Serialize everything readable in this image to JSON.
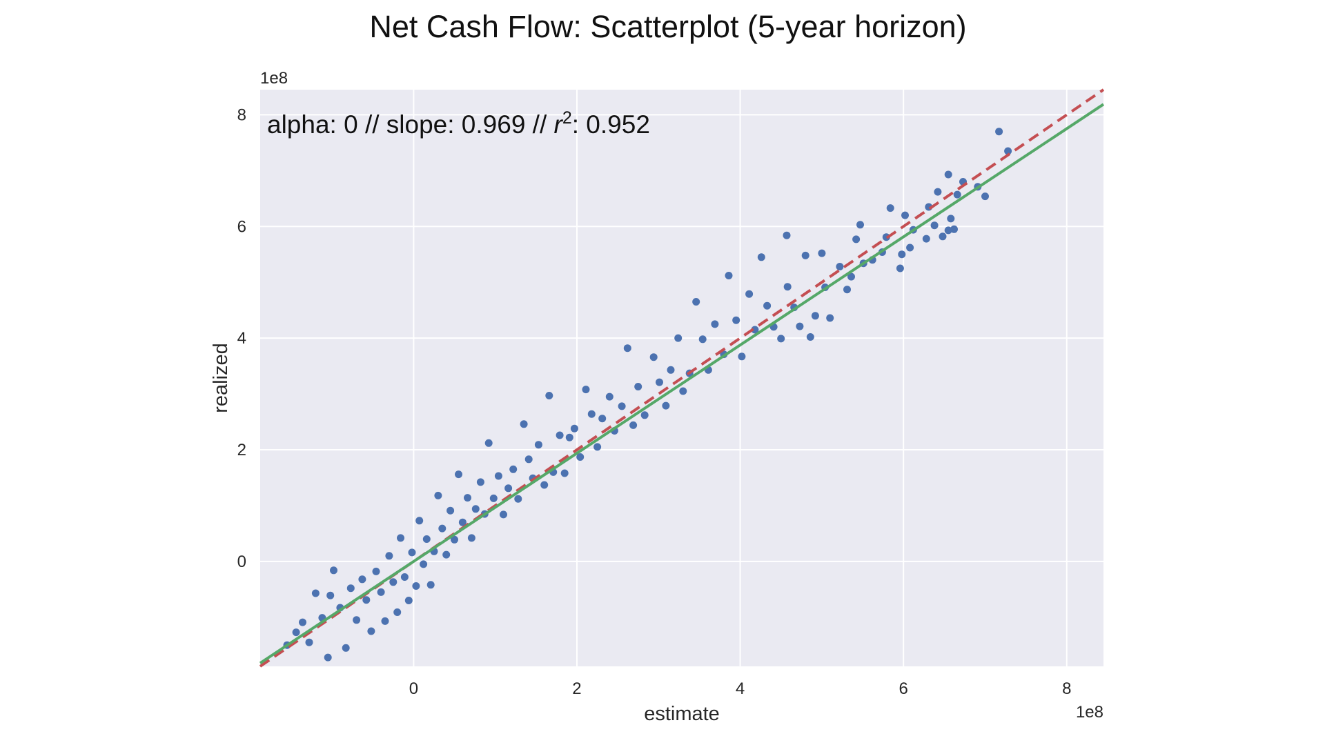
{
  "chart_data": {
    "type": "scatter",
    "title": "Net Cash Flow: Scatterplot (5-year horizon)",
    "xlabel": "estimate",
    "ylabel": "realized",
    "x_offset_label": "1e8",
    "y_offset_label": "1e8",
    "xlim": [
      -1.88,
      8.45
    ],
    "ylim": [
      -1.88,
      8.45
    ],
    "x_ticks": [
      0,
      2,
      4,
      6,
      8
    ],
    "y_ticks": [
      0,
      2,
      4,
      6,
      8
    ],
    "x_tick_labels": [
      "0",
      "2",
      "4",
      "6",
      "8"
    ],
    "y_tick_labels": [
      "0",
      "2",
      "4",
      "6",
      "8"
    ],
    "grid": true,
    "annotation": {
      "prefix": "alpha: 0  //  slope: 0.969  //  ",
      "r_symbol": "r",
      "r_exponent": "2",
      "suffix": ": 0.952"
    },
    "lines": [
      {
        "style": "dashed",
        "color": "#c44e52",
        "slope": 1.0,
        "intercept": 0
      },
      {
        "style": "solid",
        "color": "#55a868",
        "slope": 0.969,
        "intercept": 0
      }
    ],
    "series": [
      {
        "color": "#4c72b0",
        "points": [
          [
            7.17,
            7.7
          ],
          [
            7.28,
            7.35
          ],
          [
            7.0,
            6.54
          ],
          [
            6.91,
            6.71
          ],
          [
            6.55,
            6.93
          ],
          [
            6.73,
            6.8
          ],
          [
            6.66,
            6.57
          ],
          [
            6.42,
            6.62
          ],
          [
            6.31,
            6.35
          ],
          [
            6.38,
            6.02
          ],
          [
            6.48,
            5.82
          ],
          [
            6.55,
            5.93
          ],
          [
            6.58,
            6.14
          ],
          [
            6.62,
            5.95
          ],
          [
            6.28,
            5.78
          ],
          [
            6.12,
            5.94
          ],
          [
            6.08,
            5.62
          ],
          [
            6.02,
            6.2
          ],
          [
            5.98,
            5.5
          ],
          [
            5.96,
            5.25
          ],
          [
            5.84,
            6.33
          ],
          [
            5.79,
            5.81
          ],
          [
            5.74,
            5.54
          ],
          [
            5.62,
            5.4
          ],
          [
            5.51,
            5.34
          ],
          [
            5.47,
            6.03
          ],
          [
            5.42,
            5.77
          ],
          [
            5.36,
            5.1
          ],
          [
            5.31,
            4.87
          ],
          [
            5.22,
            5.28
          ],
          [
            5.1,
            4.36
          ],
          [
            5.04,
            4.91
          ],
          [
            5.0,
            5.52
          ],
          [
            4.92,
            4.4
          ],
          [
            4.86,
            4.02
          ],
          [
            4.8,
            5.48
          ],
          [
            4.73,
            4.21
          ],
          [
            4.66,
            4.55
          ],
          [
            4.58,
            4.92
          ],
          [
            4.57,
            5.84
          ],
          [
            4.5,
            3.99
          ],
          [
            4.41,
            4.2
          ],
          [
            4.33,
            4.58
          ],
          [
            4.26,
            5.45
          ],
          [
            4.18,
            4.15
          ],
          [
            4.11,
            4.79
          ],
          [
            4.02,
            3.67
          ],
          [
            3.95,
            4.32
          ],
          [
            3.86,
            5.12
          ],
          [
            3.8,
            3.71
          ],
          [
            3.69,
            4.25
          ],
          [
            3.61,
            3.43
          ],
          [
            3.54,
            3.98
          ],
          [
            3.46,
            4.65
          ],
          [
            3.38,
            3.37
          ],
          [
            3.3,
            3.05
          ],
          [
            3.24,
            4.0
          ],
          [
            3.15,
            3.43
          ],
          [
            3.09,
            2.79
          ],
          [
            3.01,
            3.21
          ],
          [
            2.94,
            3.66
          ],
          [
            2.83,
            2.62
          ],
          [
            2.75,
            3.13
          ],
          [
            2.69,
            2.44
          ],
          [
            2.62,
            3.82
          ],
          [
            2.55,
            2.78
          ],
          [
            2.46,
            2.34
          ],
          [
            2.4,
            2.95
          ],
          [
            2.31,
            2.56
          ],
          [
            2.25,
            2.05
          ],
          [
            2.18,
            2.64
          ],
          [
            2.11,
            3.08
          ],
          [
            2.04,
            1.87
          ],
          [
            1.97,
            2.38
          ],
          [
            1.91,
            2.22
          ],
          [
            1.85,
            1.58
          ],
          [
            1.79,
            2.26
          ],
          [
            1.71,
            1.6
          ],
          [
            1.66,
            2.97
          ],
          [
            1.6,
            1.37
          ],
          [
            1.53,
            2.09
          ],
          [
            1.46,
            1.49
          ],
          [
            1.41,
            1.83
          ],
          [
            1.35,
            2.46
          ],
          [
            1.28,
            1.12
          ],
          [
            1.22,
            1.65
          ],
          [
            1.16,
            1.31
          ],
          [
            1.1,
            0.84
          ],
          [
            1.04,
            1.53
          ],
          [
            0.98,
            1.13
          ],
          [
            0.92,
            2.12
          ],
          [
            0.87,
            0.85
          ],
          [
            0.82,
            1.42
          ],
          [
            0.76,
            0.94
          ],
          [
            0.71,
            0.42
          ],
          [
            0.66,
            1.14
          ],
          [
            0.6,
            0.7
          ],
          [
            0.55,
            1.56
          ],
          [
            0.5,
            0.39
          ],
          [
            0.45,
            0.91
          ],
          [
            0.4,
            0.12
          ],
          [
            0.35,
            0.59
          ],
          [
            0.3,
            1.18
          ],
          [
            0.25,
            0.18
          ],
          [
            0.21,
            -0.42
          ],
          [
            0.16,
            0.4
          ],
          [
            0.12,
            -0.05
          ],
          [
            0.07,
            0.73
          ],
          [
            0.03,
            -0.44
          ],
          [
            -0.02,
            0.16
          ],
          [
            -0.06,
            -0.7
          ],
          [
            -0.11,
            -0.28
          ],
          [
            -0.16,
            0.42
          ],
          [
            -0.2,
            -0.91
          ],
          [
            -0.25,
            -0.37
          ],
          [
            -0.3,
            0.1
          ],
          [
            -0.35,
            -1.07
          ],
          [
            -0.4,
            -0.55
          ],
          [
            -0.46,
            -0.18
          ],
          [
            -0.52,
            -1.25
          ],
          [
            -0.58,
            -0.69
          ],
          [
            -0.63,
            -0.32
          ],
          [
            -0.7,
            -1.05
          ],
          [
            -0.77,
            -0.48
          ],
          [
            -0.83,
            -1.55
          ],
          [
            -0.9,
            -0.83
          ],
          [
            -0.98,
            -0.16
          ],
          [
            -1.05,
            -1.72
          ],
          [
            -1.12,
            -1.01
          ],
          [
            -1.2,
            -0.57
          ],
          [
            -1.28,
            -1.45
          ],
          [
            -1.36,
            -1.09
          ],
          [
            -1.44,
            -1.27
          ],
          [
            -1.55,
            -1.5
          ],
          [
            -1.02,
            -0.61
          ]
        ]
      }
    ]
  }
}
